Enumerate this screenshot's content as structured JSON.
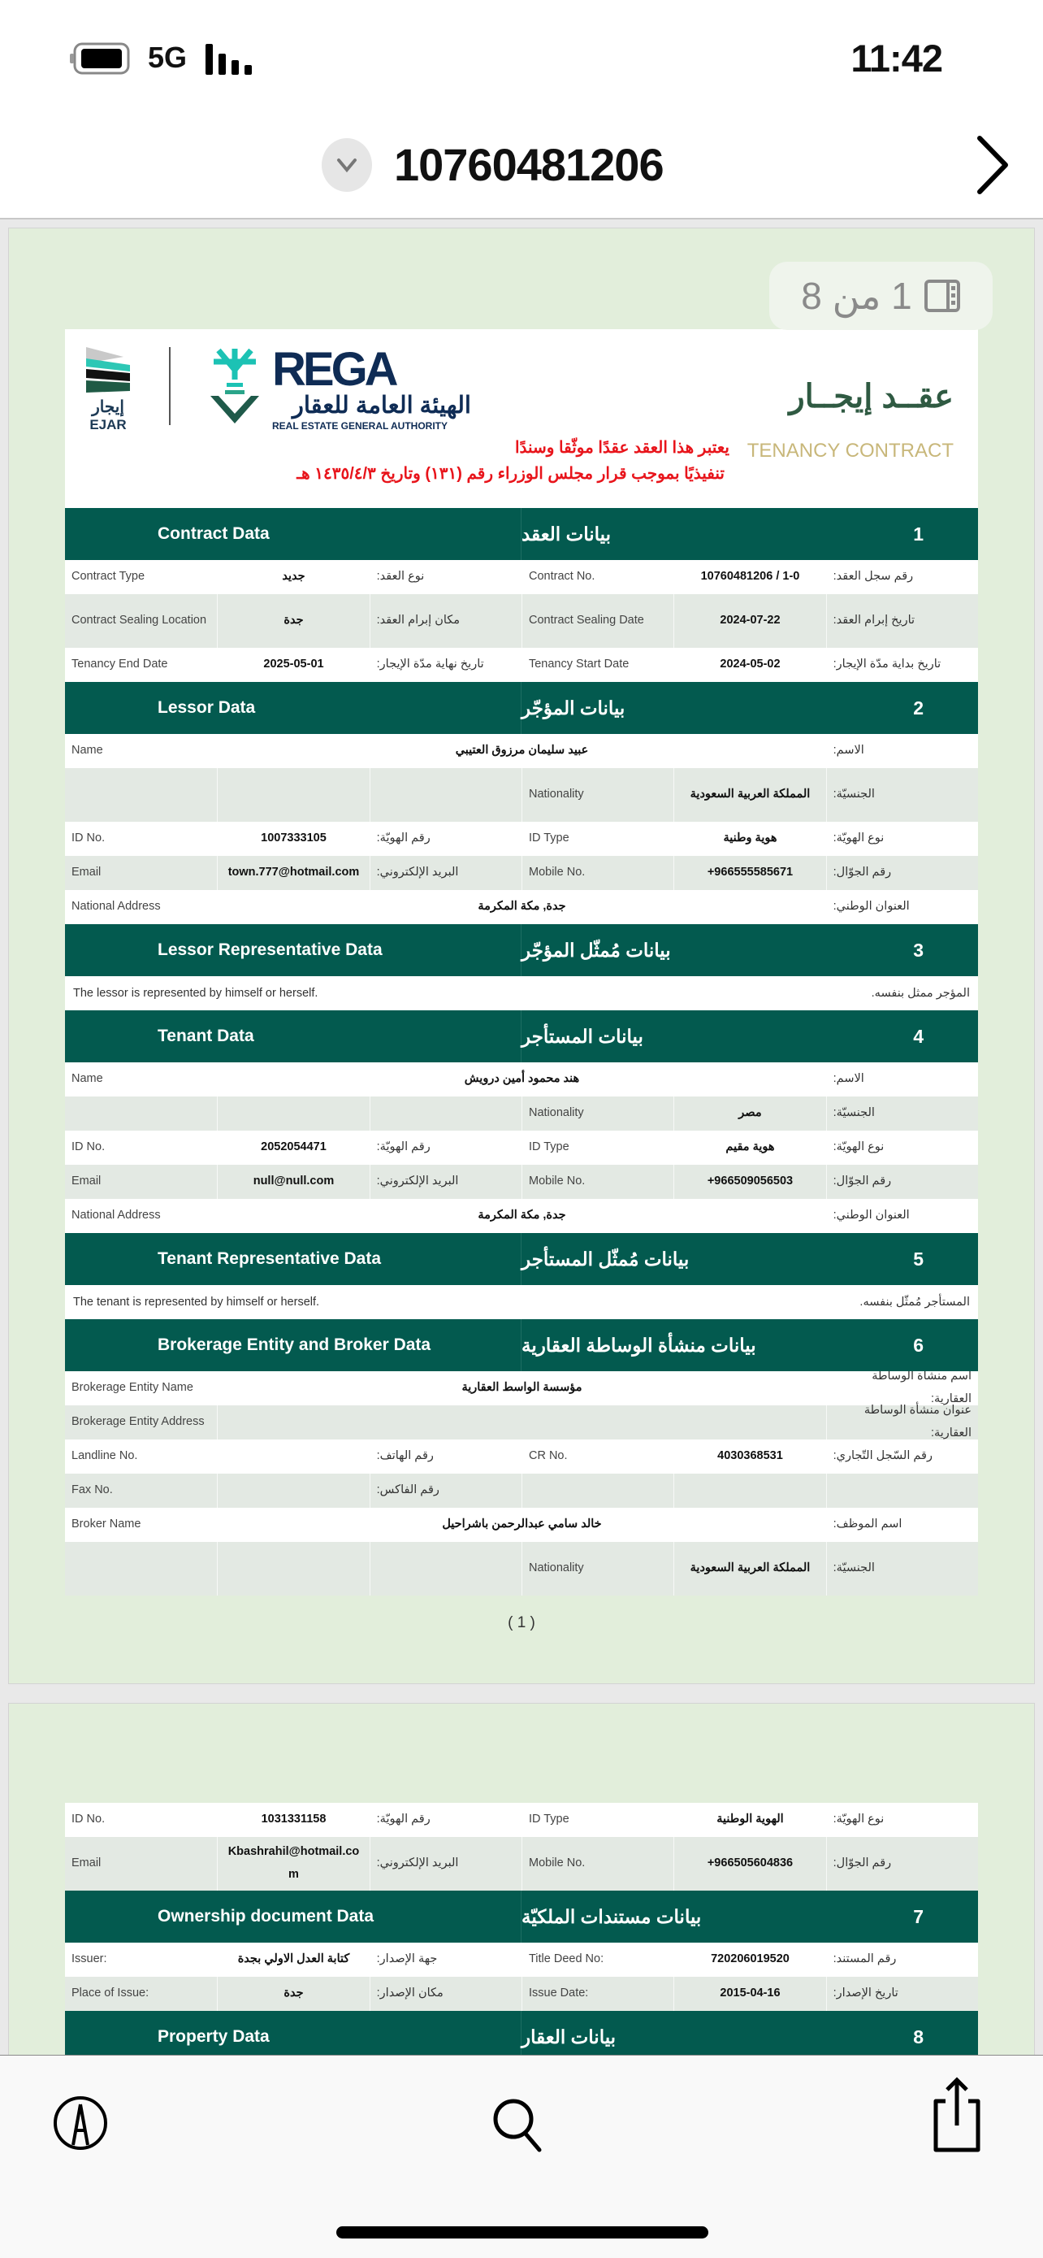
{
  "status_bar": {
    "time": "11:42",
    "network": "5G"
  },
  "nav": {
    "title": "10760481206"
  },
  "page_indicator": {
    "label": "1 من 8"
  },
  "logos": {
    "ejar_ar": "إيجار",
    "ejar_en": "EJAR",
    "rega": "REGA",
    "rega_ar": "الهيئة العامة للعقار",
    "rega_en": "REAL ESTATE GENERAL AUTHORITY"
  },
  "doc_title": {
    "ar": "عقــد إيجــار",
    "en": "TENANCY CONTRACT"
  },
  "notice": {
    "line1": "يعتبر هذا العقد عقدًا موثّقا وسندًا",
    "line2": "تنفيذيًا بموجب قرار مجلس الوزراء رقم (١٣١) وتاريخ ١٤٣٥/٤/٣ هـ"
  },
  "colors": {
    "header": "#035a4f",
    "page_bg": "#e2eedb",
    "alt_row": "#e3e9e3",
    "notice": "#e8141b",
    "title_gold": "#c8b77a"
  },
  "page1": [
    {
      "num": "1",
      "en": "Contract Data",
      "ar": "بيانات العقد",
      "rows": [
        {
          "type": "quad",
          "l": [
            "Contract Type",
            "جديد",
            "نوع العقد:"
          ],
          "r": [
            "Contract No.",
            "10760481206 / 1-0",
            "رقم سجل العقد:"
          ]
        },
        {
          "type": "quad",
          "tall": true,
          "l": [
            "Contract Sealing Location",
            "جدة",
            "مكان إبرام العقد:"
          ],
          "r": [
            "Contract Sealing Date",
            "2024-07-22",
            "تاريخ إبرام العقد:"
          ]
        },
        {
          "type": "quad",
          "l": [
            "Tenancy End Date",
            "2025-05-01",
            "تاريخ نهاية مدّة الإيجار:"
          ],
          "r": [
            "Tenancy Start Date",
            "2024-05-02",
            "تاريخ بداية مدّة الإيجار:"
          ]
        }
      ]
    },
    {
      "num": "2",
      "en": "Lessor Data",
      "ar": "بيانات المؤجّر",
      "rows": [
        {
          "type": "wide",
          "f": [
            "Name",
            "عبيد سليمان مرزوق العتيبي",
            "الاسم:"
          ]
        },
        {
          "type": "quad",
          "tall": true,
          "l": [
            "",
            "",
            ""
          ],
          "r": [
            "Nationality",
            "المملكة العربية السعودية",
            "الجنسيّة:"
          ]
        },
        {
          "type": "quad",
          "l": [
            "ID No.",
            "1007333105",
            "رقم الهويّة:"
          ],
          "r": [
            "ID Type",
            "هوية وطنية",
            "نوع الهويّة:"
          ]
        },
        {
          "type": "quad",
          "l": [
            "Email",
            "town.777@hotmail.com",
            "البريد الإلكتروني:"
          ],
          "r": [
            "Mobile No.",
            "+966555585671",
            "رقم الجوّال:"
          ]
        },
        {
          "type": "wide",
          "f": [
            "National Address",
            "جدة, مكة المكرمة",
            "العنوان الوطني:"
          ]
        }
      ]
    },
    {
      "num": "3",
      "en": "Lessor Representative Data",
      "ar": "بيانات مُمثّل المؤجّر",
      "rows": [
        {
          "type": "text",
          "en": "The lessor is represented by himself or herself.",
          "ar": "المؤجر ممثل بنفسه."
        }
      ]
    },
    {
      "num": "4",
      "en": "Tenant Data",
      "ar": "بيانات المستأجر",
      "rows": [
        {
          "type": "wide",
          "f": [
            "Name",
            "هند محمود أمين درويش",
            "الاسم:"
          ]
        },
        {
          "type": "quad",
          "l": [
            "",
            "",
            ""
          ],
          "r": [
            "Nationality",
            "مصر",
            "الجنسيّة:"
          ]
        },
        {
          "type": "quad",
          "l": [
            "ID No.",
            "2052054471",
            "رقم الهويّة:"
          ],
          "r": [
            "ID Type",
            "هوية مقيم",
            "نوع الهويّة:"
          ]
        },
        {
          "type": "quad",
          "l": [
            "Email",
            "null@null.com",
            "البريد الإلكتروني:"
          ],
          "r": [
            "Mobile No.",
            "+966509056503",
            "رقم الجوّال:"
          ]
        },
        {
          "type": "wide",
          "f": [
            "National Address",
            "جدة, مكة المكرمة",
            "العنوان الوطني:"
          ]
        }
      ]
    },
    {
      "num": "5",
      "en": "Tenant Representative Data",
      "ar": "بيانات مُمثّل المستأجر",
      "rows": [
        {
          "type": "text",
          "en": "The tenant is represented by himself or herself.",
          "ar": "المستأجر مُمثّل بنفسه."
        }
      ]
    },
    {
      "num": "6",
      "en": "Brokerage Entity and Broker Data",
      "ar": "بيانات منشأة الوساطة العقارية",
      "rows": [
        {
          "type": "wide",
          "f": [
            "Brokerage Entity Name",
            "مؤسسة الواسط العقارية",
            "اسم منشأة الوساطة العقارية:"
          ]
        },
        {
          "type": "wide",
          "f": [
            "Brokerage Entity Address",
            "",
            "عنوان منشأة الوساطة العقارية:"
          ]
        },
        {
          "type": "quad",
          "l": [
            "Landline No.",
            "",
            "رقم الهاتف:"
          ],
          "r": [
            "CR No.",
            "4030368531",
            "رقم السّجل التّجاري:"
          ]
        },
        {
          "type": "quad",
          "l": [
            "Fax No.",
            "",
            "رقم الفاكس:"
          ],
          "r": [
            "",
            "",
            ""
          ]
        },
        {
          "type": "wide",
          "f": [
            "Broker Name",
            "خالد سامي عبدالرحمن باشراحيل",
            "اسم الموظف:"
          ]
        },
        {
          "type": "quad",
          "tall": true,
          "l": [
            "",
            "",
            ""
          ],
          "r": [
            "Nationality",
            "المملكة العربية السعودية",
            "الجنسيّة:"
          ]
        }
      ]
    }
  ],
  "page_number": "( 1 )",
  "page2": [
    {
      "rows": [
        {
          "type": "quad",
          "l": [
            "ID No.",
            "1031331158",
            "رقم الهويّة:"
          ],
          "r": [
            "ID Type",
            "الهوية الوطنية",
            "نوع الهويّة:"
          ]
        },
        {
          "type": "quad",
          "tall": true,
          "l": [
            "Email",
            "Kbashrahil@hotmail.com",
            "البريد الإلكتروني:"
          ],
          "r": [
            "Mobile No.",
            "+966505604836",
            "رقم الجوّال:"
          ]
        }
      ]
    },
    {
      "num": "7",
      "en": "Ownership document Data",
      "ar": "بيانات مستندات الملكيّة",
      "rows": [
        {
          "type": "quad",
          "l": [
            "Issuer:",
            "كتابة العدل الاولي بجدة",
            "جهة الإصدار:"
          ],
          "r": [
            "Title Deed No:",
            "720206019520",
            "رقم المستند:"
          ]
        },
        {
          "type": "quad",
          "l": [
            "Place of Issue:",
            "جدة",
            "مكان الإصدار:"
          ],
          "r": [
            "Issue Date:",
            "2015-04-16",
            "تاريخ الإصدار:"
          ]
        }
      ]
    },
    {
      "num": "8",
      "en": "Property Data",
      "ar": "بيانات العقار",
      "rows": []
    }
  ]
}
